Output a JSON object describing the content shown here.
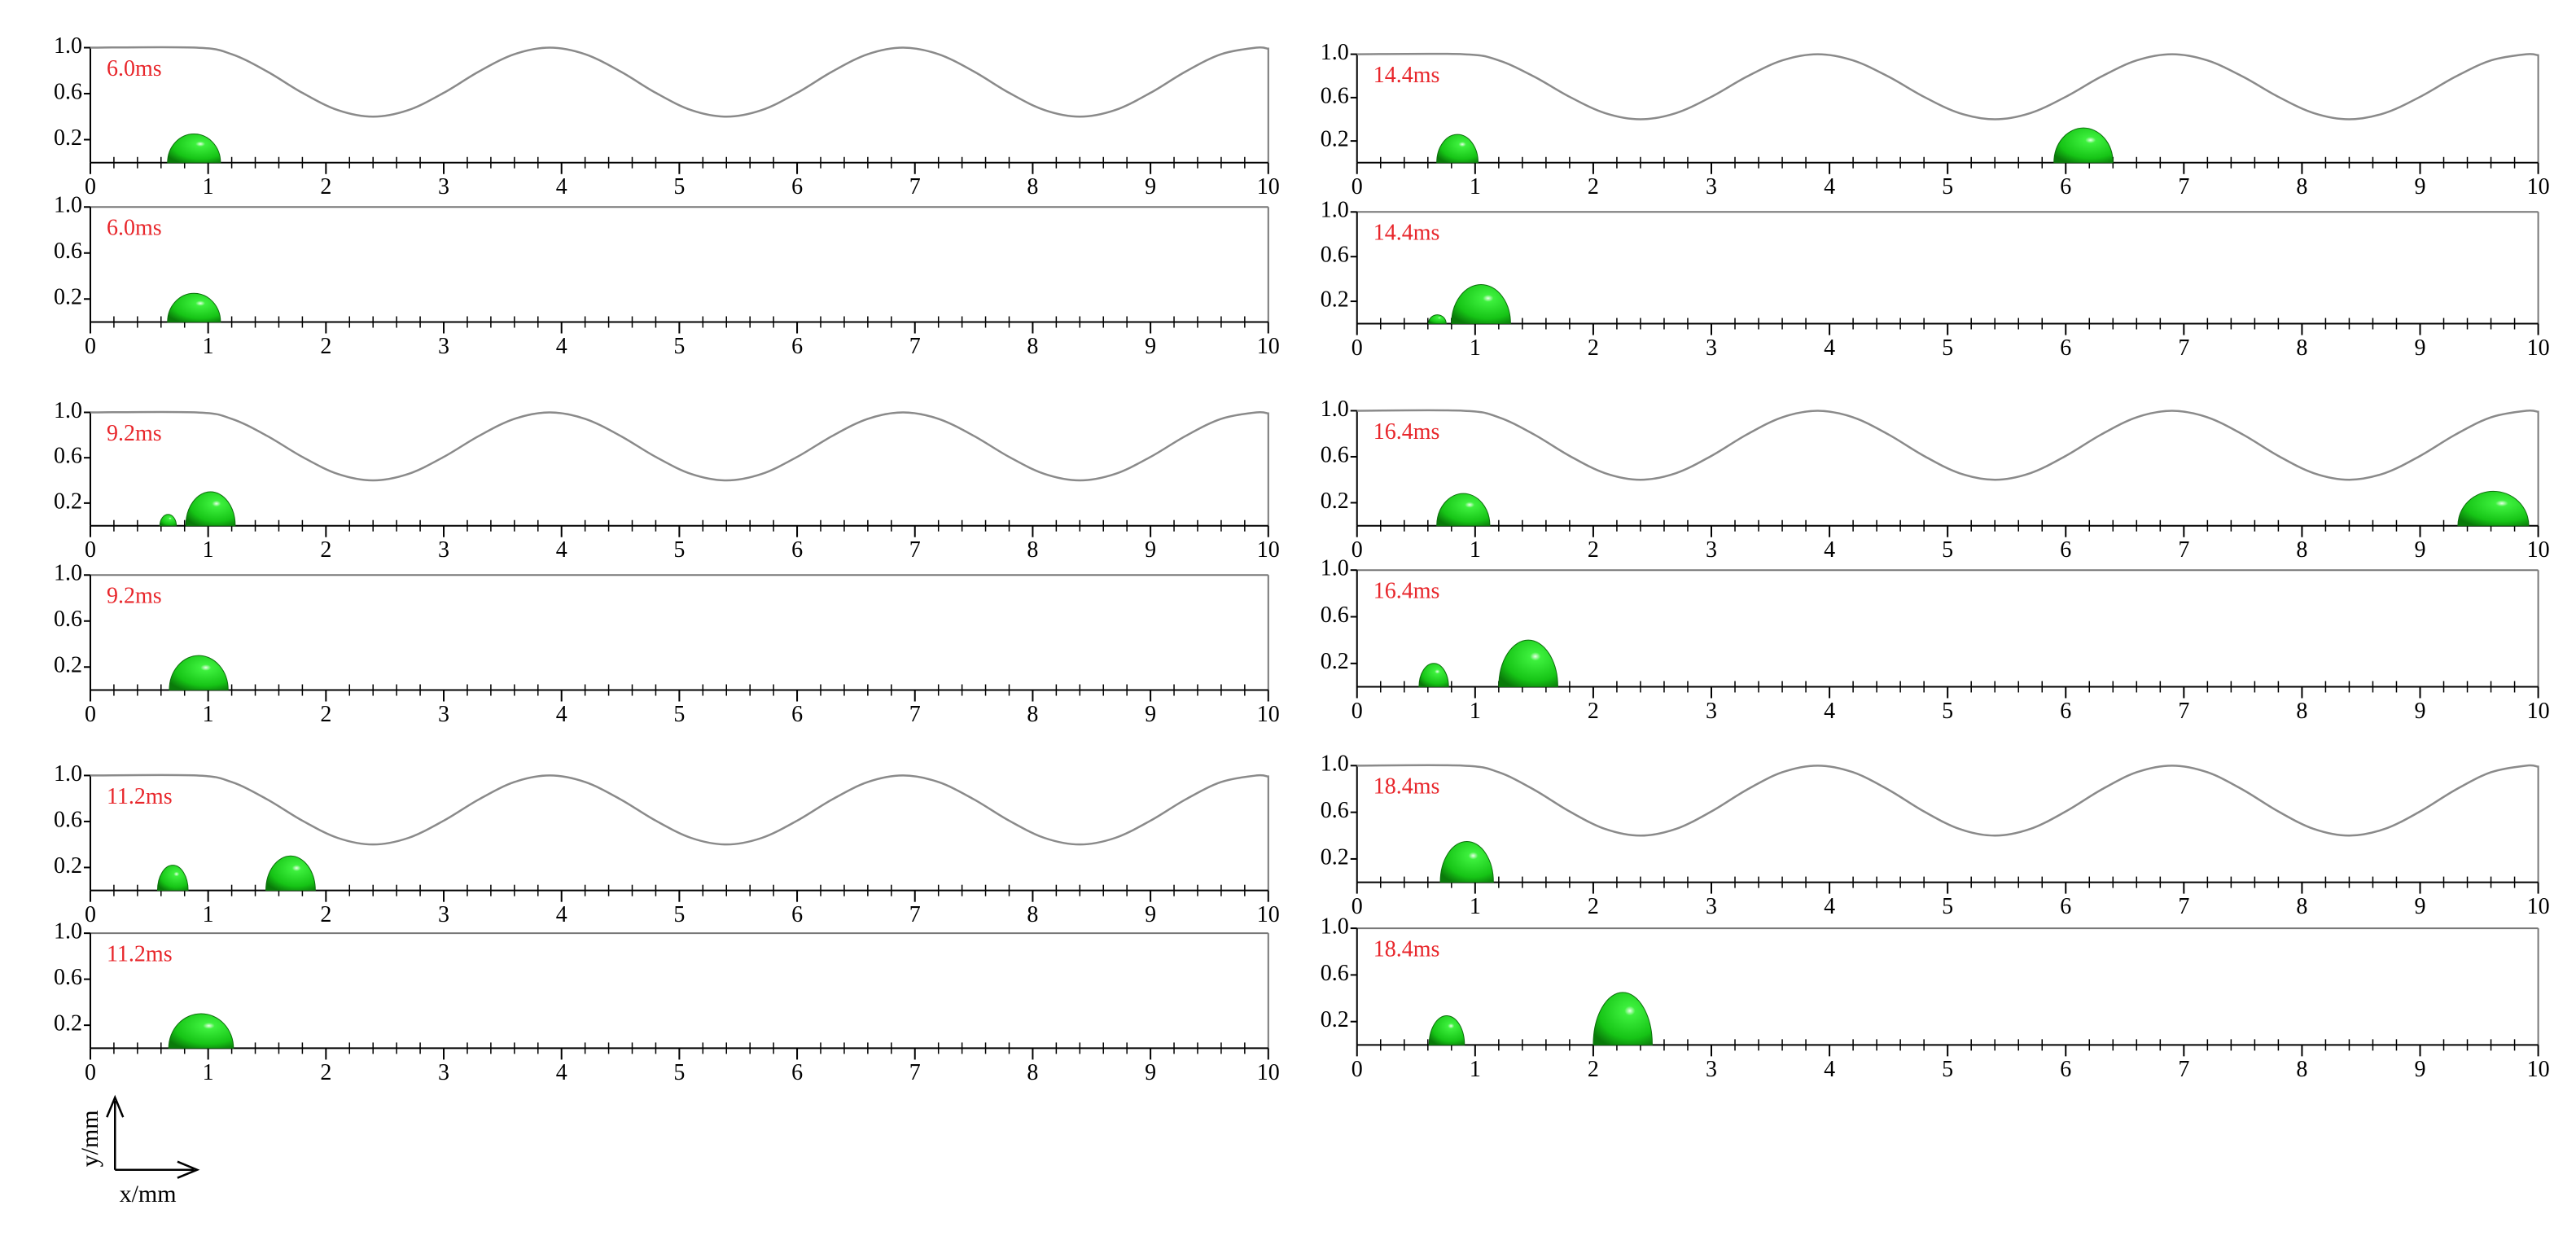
{
  "wall": {
    "x": [
      0,
      0.9,
      1.2,
      1.5,
      1.8,
      2.1,
      2.4,
      2.7,
      3.0,
      3.3,
      3.6,
      3.9,
      4.2,
      4.5,
      4.8,
      5.1,
      5.4,
      5.7,
      6.0,
      6.3,
      6.6,
      6.9,
      7.2,
      7.5,
      7.8,
      8.1,
      8.4,
      8.7,
      9.0,
      9.3,
      9.6,
      9.9,
      10
    ],
    "y": [
      1.0,
      1.0,
      0.943,
      0.793,
      0.607,
      0.457,
      0.4,
      0.457,
      0.607,
      0.793,
      0.943,
      1.0,
      0.943,
      0.793,
      0.607,
      0.457,
      0.4,
      0.457,
      0.607,
      0.793,
      0.943,
      1.0,
      0.943,
      0.793,
      0.607,
      0.457,
      0.4,
      0.457,
      0.607,
      0.793,
      0.943,
      1.0,
      0.99
    ]
  },
  "axes_legend": {
    "x_label": "x/mm",
    "y_label": "y/mm"
  },
  "chart_data": [
    {
      "type": "droplet-snapshot",
      "time_label": "6.0ms",
      "wavy_wall": true,
      "xlim": [
        0,
        10
      ],
      "xticks": [
        0,
        1,
        2,
        3,
        4,
        5,
        6,
        7,
        8,
        9,
        10
      ],
      "ylim": [
        0,
        1
      ],
      "yticks": [
        {
          "value": 1,
          "label": "1.0"
        },
        0.6,
        0.2
      ],
      "droplets": [
        {
          "x": 0.88,
          "width": 0.45,
          "height": 0.25
        }
      ]
    },
    {
      "type": "droplet-snapshot",
      "time_label": "6.0ms",
      "wavy_wall": false,
      "xlim": [
        0,
        10
      ],
      "xticks": [
        0,
        1,
        2,
        3,
        4,
        5,
        6,
        7,
        8,
        9,
        10
      ],
      "ylim": [
        0,
        1
      ],
      "yticks": [
        {
          "value": 1,
          "label": "1.0"
        },
        0.6,
        0.2
      ],
      "droplets": [
        {
          "x": 0.88,
          "width": 0.45,
          "height": 0.25
        }
      ]
    },
    {
      "type": "droplet-snapshot",
      "time_label": "9.2ms",
      "wavy_wall": true,
      "xlim": [
        0,
        10
      ],
      "xticks": [
        0,
        1,
        2,
        3,
        4,
        5,
        6,
        7,
        8,
        9,
        10
      ],
      "ylim": [
        0,
        1
      ],
      "yticks": [
        {
          "value": 1,
          "label": "1.0"
        },
        0.6,
        0.2
      ],
      "droplets": [
        {
          "x": 0.66,
          "width": 0.14,
          "height": 0.1
        },
        {
          "x": 1.02,
          "width": 0.42,
          "height": 0.3
        }
      ]
    },
    {
      "type": "droplet-snapshot",
      "time_label": "9.2ms",
      "wavy_wall": false,
      "xlim": [
        0,
        10
      ],
      "xticks": [
        0,
        1,
        2,
        3,
        4,
        5,
        6,
        7,
        8,
        9,
        10
      ],
      "ylim": [
        0,
        1
      ],
      "yticks": [
        {
          "value": 1,
          "label": "1.0"
        },
        0.6,
        0.2
      ],
      "droplets": [
        {
          "x": 0.92,
          "width": 0.5,
          "height": 0.3
        }
      ]
    },
    {
      "type": "droplet-snapshot",
      "time_label": "11.2ms",
      "wavy_wall": true,
      "xlim": [
        0,
        10
      ],
      "xticks": [
        0,
        1,
        2,
        3,
        4,
        5,
        6,
        7,
        8,
        9,
        10
      ],
      "ylim": [
        0,
        1
      ],
      "yticks": [
        {
          "value": 1,
          "label": "1.0"
        },
        0.6,
        0.2
      ],
      "droplets": [
        {
          "x": 0.7,
          "width": 0.26,
          "height": 0.22
        },
        {
          "x": 1.7,
          "width": 0.42,
          "height": 0.3
        }
      ]
    },
    {
      "type": "droplet-snapshot",
      "time_label": "11.2ms",
      "wavy_wall": false,
      "xlim": [
        0,
        10
      ],
      "xticks": [
        0,
        1,
        2,
        3,
        4,
        5,
        6,
        7,
        8,
        9,
        10
      ],
      "ylim": [
        0,
        1
      ],
      "yticks": [
        {
          "value": 1,
          "label": "1.0"
        },
        0.6,
        0.2
      ],
      "droplets": [
        {
          "x": 0.94,
          "width": 0.55,
          "height": 0.3
        }
      ]
    },
    {
      "type": "droplet-snapshot",
      "time_label": "14.4ms",
      "wavy_wall": true,
      "xlim": [
        0,
        10
      ],
      "xticks": [
        0,
        1,
        2,
        3,
        4,
        5,
        6,
        7,
        8,
        9,
        10
      ],
      "ylim": [
        0,
        1
      ],
      "yticks": [
        {
          "value": 1,
          "label": "1.0"
        },
        0.6,
        0.2
      ],
      "droplets": [
        {
          "x": 0.85,
          "width": 0.35,
          "height": 0.26
        },
        {
          "x": 6.15,
          "width": 0.5,
          "height": 0.32
        }
      ]
    },
    {
      "type": "droplet-snapshot",
      "time_label": "14.4ms",
      "wavy_wall": false,
      "xlim": [
        0,
        10
      ],
      "xticks": [
        0,
        1,
        2,
        3,
        4,
        5,
        6,
        7,
        8,
        9,
        10
      ],
      "ylim": [
        0,
        1
      ],
      "yticks": [
        {
          "value": 1,
          "label": "1.0"
        },
        0.6,
        0.2
      ],
      "droplets": [
        {
          "x": 0.68,
          "width": 0.15,
          "height": 0.08
        },
        {
          "x": 1.05,
          "width": 0.5,
          "height": 0.35
        }
      ]
    },
    {
      "type": "droplet-snapshot",
      "time_label": "16.4ms",
      "wavy_wall": true,
      "xlim": [
        0,
        10
      ],
      "xticks": [
        0,
        1,
        2,
        3,
        4,
        5,
        6,
        7,
        8,
        9,
        10
      ],
      "ylim": [
        0,
        1
      ],
      "yticks": [
        {
          "value": 1,
          "label": "1.0"
        },
        0.6,
        0.2
      ],
      "droplets": [
        {
          "x": 0.9,
          "width": 0.45,
          "height": 0.28
        },
        {
          "x": 9.62,
          "width": 0.6,
          "height": 0.3
        }
      ]
    },
    {
      "type": "droplet-snapshot",
      "time_label": "16.4ms",
      "wavy_wall": false,
      "xlim": [
        0,
        10
      ],
      "xticks": [
        0,
        1,
        2,
        3,
        4,
        5,
        6,
        7,
        8,
        9,
        10
      ],
      "ylim": [
        0,
        1
      ],
      "yticks": [
        {
          "value": 1,
          "label": "1.0"
        },
        0.6,
        0.2
      ],
      "droplets": [
        {
          "x": 0.65,
          "width": 0.25,
          "height": 0.2
        },
        {
          "x": 1.45,
          "width": 0.5,
          "height": 0.4
        }
      ]
    },
    {
      "type": "droplet-snapshot",
      "time_label": "18.4ms",
      "wavy_wall": true,
      "xlim": [
        0,
        10
      ],
      "xticks": [
        0,
        1,
        2,
        3,
        4,
        5,
        6,
        7,
        8,
        9,
        10
      ],
      "ylim": [
        0,
        1
      ],
      "yticks": [
        {
          "value": 1,
          "label": "1.0"
        },
        0.6,
        0.2
      ],
      "droplets": [
        {
          "x": 0.93,
          "width": 0.45,
          "height": 0.35
        }
      ]
    },
    {
      "type": "droplet-snapshot",
      "time_label": "18.4ms",
      "wavy_wall": false,
      "xlim": [
        0,
        10
      ],
      "xticks": [
        0,
        1,
        2,
        3,
        4,
        5,
        6,
        7,
        8,
        9,
        10
      ],
      "ylim": [
        0,
        1
      ],
      "yticks": [
        {
          "value": 1,
          "label": "1.0"
        },
        0.6,
        0.2
      ],
      "droplets": [
        {
          "x": 0.76,
          "width": 0.3,
          "height": 0.25
        },
        {
          "x": 2.25,
          "width": 0.5,
          "height": 0.45
        }
      ]
    }
  ]
}
